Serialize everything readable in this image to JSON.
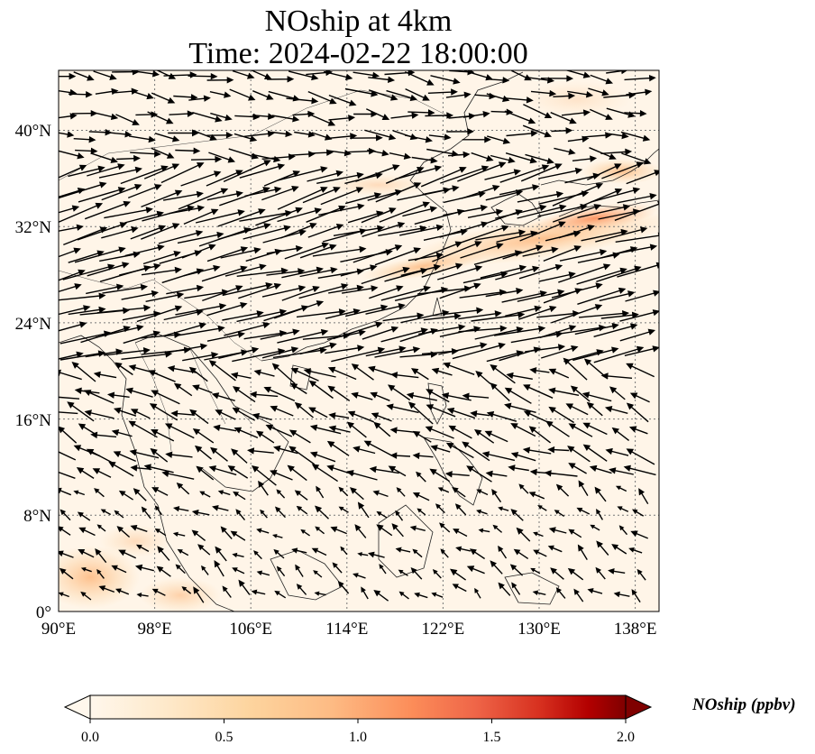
{
  "title_line1": "NOship at 4km",
  "title_line2": "Time: 2024-02-22 18:00:00",
  "lon_ticks": [
    "90°E",
    "98°E",
    "106°E",
    "114°E",
    "122°E",
    "130°E",
    "138°E"
  ],
  "lat_ticks": [
    "0°",
    "8°N",
    "16°N",
    "24°N",
    "32°N",
    "40°N"
  ],
  "colorbar": {
    "label": "NOship (ppbv)",
    "ticks": [
      "0.0",
      "0.5",
      "1.0",
      "1.5",
      "2.0"
    ],
    "min": 0,
    "max": 2.0,
    "extend": "both",
    "cmap": "OrRd"
  },
  "map_extent": {
    "lon": [
      90,
      140
    ],
    "lat": [
      0,
      45
    ]
  }
}
